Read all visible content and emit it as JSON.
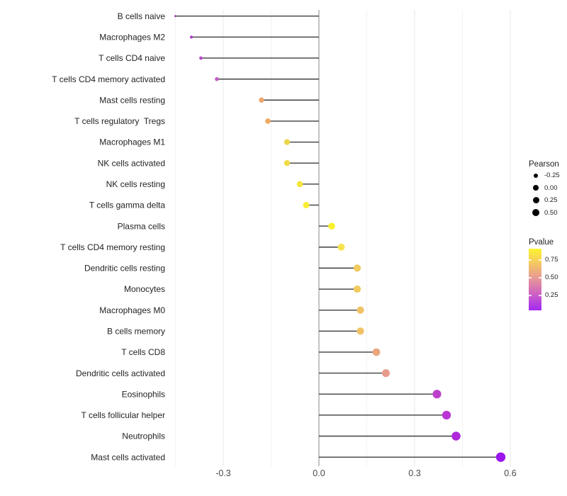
{
  "chart_data": {
    "type": "bar",
    "variant": "horizontal-lollipop",
    "title": "",
    "xlabel": "",
    "ylabel": "",
    "xlim": [
      -0.467,
      0.656
    ],
    "x_ticks": [
      -0.3,
      0.0,
      0.3,
      0.6
    ],
    "x_tick_labels": [
      "-0.3",
      "0.0",
      "0.3",
      "0.6"
    ],
    "grid": "vertical-only",
    "baseline": 0.0,
    "size_encoding": "Pearson",
    "color_encoding": "Pvalue",
    "points": [
      {
        "label": "B cells naive",
        "pearson": -0.45,
        "pvalue": 0.18,
        "color": "#9C36AE"
      },
      {
        "label": "Macrophages M2",
        "pearson": -0.4,
        "pvalue": 0.22,
        "color": "#A93BC5"
      },
      {
        "label": "T cells CD4 naive",
        "pearson": -0.37,
        "pvalue": 0.25,
        "color": "#B746C9"
      },
      {
        "label": "T cells CD4 memory activated",
        "pearson": -0.32,
        "pvalue": 0.3,
        "color": "#C25BC3"
      },
      {
        "label": "Mast cells resting",
        "pearson": -0.18,
        "pvalue": 0.6,
        "color": "#EDA76E"
      },
      {
        "label": "T cells regulatory  Tregs",
        "pearson": -0.16,
        "pvalue": 0.62,
        "color": "#EFA95F"
      },
      {
        "label": "Macrophages M1",
        "pearson": -0.1,
        "pvalue": 0.76,
        "color": "#EDD44C"
      },
      {
        "label": "NK cells activated",
        "pearson": -0.1,
        "pvalue": 0.78,
        "color": "#F1DB46"
      },
      {
        "label": "NK cells resting",
        "pearson": -0.06,
        "pvalue": 0.82,
        "color": "#F5E53E"
      },
      {
        "label": "T cells gamma delta",
        "pearson": -0.04,
        "pvalue": 0.86,
        "color": "#F8EC33"
      },
      {
        "label": "Plasma cells",
        "pearson": 0.04,
        "pvalue": 0.9,
        "color": "#FAF02A"
      },
      {
        "label": "T cells CD4 memory resting",
        "pearson": 0.07,
        "pvalue": 0.82,
        "color": "#F6E44E"
      },
      {
        "label": "Dendritic cells resting",
        "pearson": 0.12,
        "pvalue": 0.7,
        "color": "#F2CB5F"
      },
      {
        "label": "Monocytes",
        "pearson": 0.12,
        "pvalue": 0.7,
        "color": "#F2CB5F"
      },
      {
        "label": "Macrophages M0",
        "pearson": 0.13,
        "pvalue": 0.66,
        "color": "#F0C266"
      },
      {
        "label": "B cells memory",
        "pearson": 0.13,
        "pvalue": 0.66,
        "color": "#F0C266"
      },
      {
        "label": "T cells CD8",
        "pearson": 0.18,
        "pvalue": 0.54,
        "color": "#EBA57D"
      },
      {
        "label": "Dendritic cells activated",
        "pearson": 0.21,
        "pvalue": 0.5,
        "color": "#E79A8C"
      },
      {
        "label": "Eosinophils",
        "pearson": 0.37,
        "pvalue": 0.26,
        "color": "#BC40CA"
      },
      {
        "label": "T cells follicular helper",
        "pearson": 0.4,
        "pvalue": 0.24,
        "color": "#BB35D4"
      },
      {
        "label": "Neutrophils",
        "pearson": 0.43,
        "pvalue": 0.19,
        "color": "#AE28DC"
      },
      {
        "label": "Mast cells activated",
        "pearson": 0.57,
        "pvalue": 0.06,
        "color": "#9B15EF"
      }
    ],
    "colors": {
      "segment": "#3E3E3E",
      "zero_line": "#9C9C9C",
      "grid_major": "#E8E8E8",
      "grid_minor": "#F2F2F2",
      "axis_text": "#4A4A4A",
      "category_text": "#232323"
    }
  },
  "legend": {
    "pearson": {
      "title": "Pearson",
      "entries": [
        {
          "label": "-0.25"
        },
        {
          "label": "0.00"
        },
        {
          "label": "0.25"
        },
        {
          "label": "0.50"
        }
      ]
    },
    "pvalue": {
      "title": "Pvalue",
      "labels": [
        "0.75",
        "0.50",
        "0.25"
      ],
      "gradient_top_to_bottom": [
        "#FBF332",
        "#F7D058",
        "#E89A94",
        "#CB5BC9",
        "#A229F2"
      ]
    }
  }
}
